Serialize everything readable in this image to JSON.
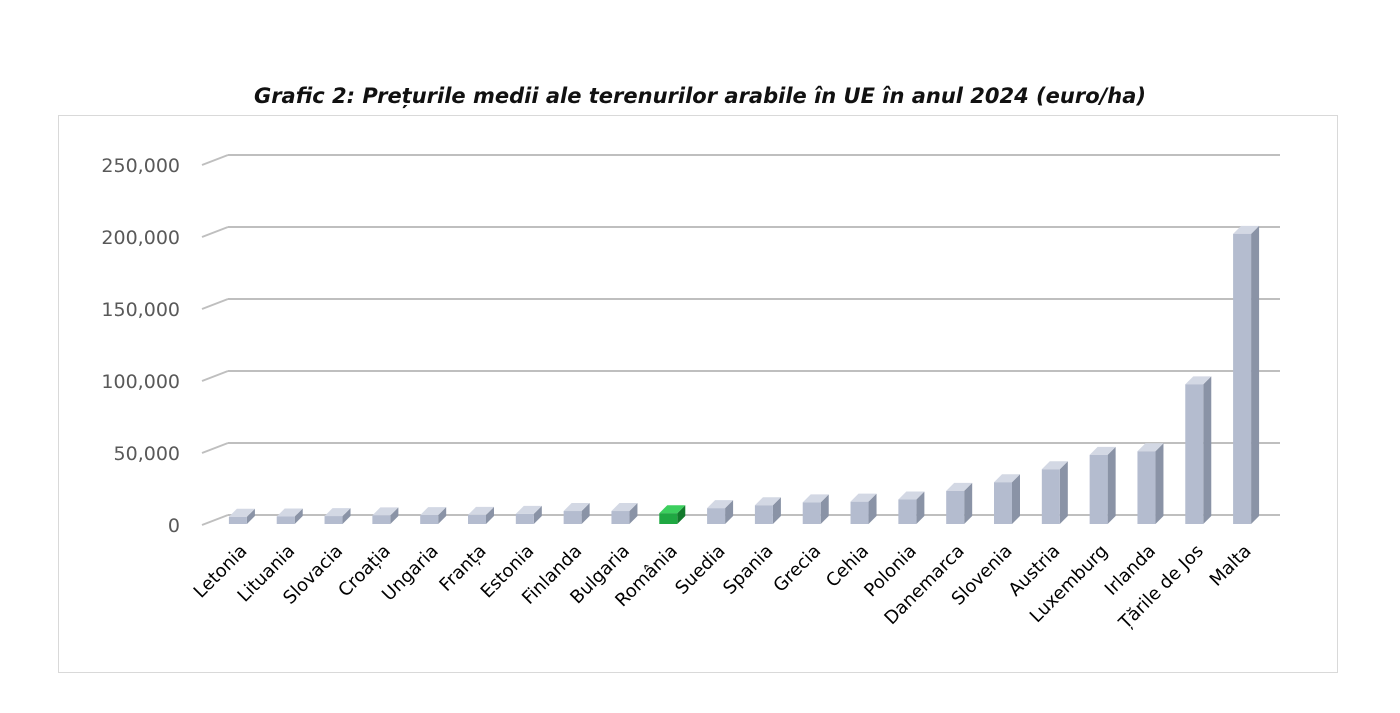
{
  "chart_data": {
    "type": "bar",
    "title": "Grafic 2: Prețurile medii ale terenurilor arabile în UE în anul 2024 (euro/ha)",
    "xlabel": "",
    "ylabel": "",
    "ylim": [
      0,
      250000
    ],
    "yticks": [
      0,
      50000,
      100000,
      150000,
      200000,
      250000
    ],
    "ytick_labels": [
      "0",
      "50,000",
      "100,000",
      "150,000",
      "200,000",
      "250,000"
    ],
    "grid": true,
    "legend": "none",
    "categories": [
      "Letonia",
      "Lituania",
      "Slovacia",
      "Croația",
      "Ungaria",
      "Franța",
      "Estonia",
      "Finlanda",
      "Bulgaria",
      "România",
      "Suedia",
      "Spania",
      "Grecia",
      "Cehia",
      "Polonia",
      "Danemarca",
      "Slovenia",
      "Austria",
      "Luxemburg",
      "Irlanda",
      "Țările de Jos",
      "Malta"
    ],
    "values": [
      5000,
      5200,
      5500,
      6000,
      6200,
      6300,
      7000,
      9000,
      9000,
      7500,
      11000,
      13000,
      15000,
      15500,
      17000,
      23000,
      29000,
      38000,
      48000,
      50500,
      97000,
      201500
    ],
    "colors": {
      "default": "#b4bccf",
      "highlight": "#1fa842"
    },
    "highlight_category": "România"
  }
}
